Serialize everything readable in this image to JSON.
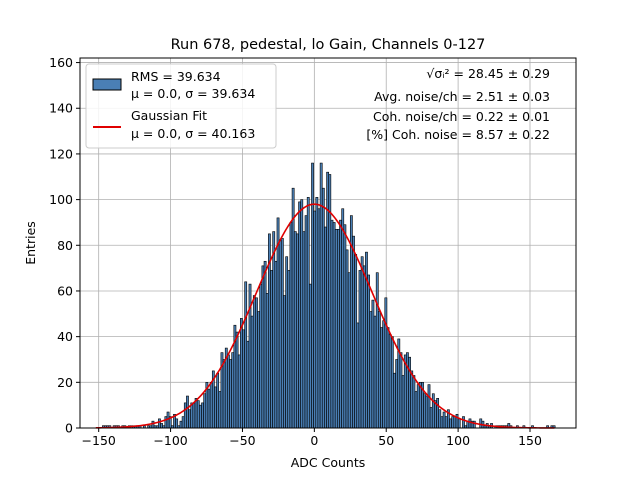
{
  "chart_data": {
    "type": "bar",
    "title": "Run 678, pedestal, lo Gain, Channels 0-127",
    "xlabel": "ADC Counts",
    "ylabel": "Entries",
    "xlim": [
      -163,
      182
    ],
    "ylim": [
      0,
      162
    ],
    "xticks": [
      -150,
      -100,
      -50,
      0,
      50,
      100,
      150
    ],
    "yticks": [
      0,
      20,
      40,
      60,
      80,
      100,
      120,
      140,
      160
    ],
    "grid": true,
    "legend_position": "top-left",
    "bin_width": 1.5,
    "histogram": {
      "name": "RMS = 39.634",
      "name_line2": "μ = 0.0, σ = 39.634",
      "mu": 0.0,
      "sigma": 39.634,
      "x_range": [
        -152,
        167
      ],
      "peak": 116,
      "color": "#4a7fb5",
      "edge_color": "#000000"
    },
    "fit": {
      "name": "Gaussian Fit",
      "name_line2": "μ = 0.0, σ = 40.163",
      "mu": 0.0,
      "sigma": 40.163,
      "amplitude": 98,
      "color": "#e00000"
    },
    "annotations": {
      "sigma_sym": "√σᵢ²",
      "sigma_value": " = 28.45 ± 0.29",
      "avg_noise": "Avg. noise/ch = 2.51 ± 0.03",
      "coh_noise": "Coh. noise/ch = 0.22 ± 0.01",
      "coh_pct": "[%] Coh. noise = 8.57 ± 0.22"
    }
  }
}
